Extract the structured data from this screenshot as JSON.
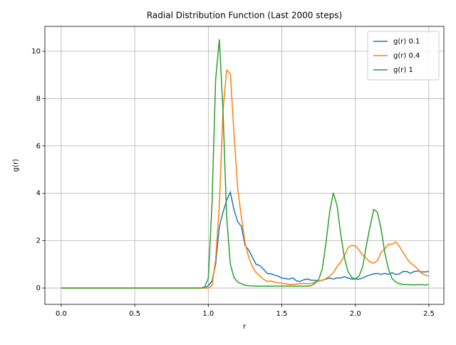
{
  "chart_data": {
    "type": "line",
    "title": "Radial Distribution Function (Last 2000 steps)",
    "x_label": "r",
    "y_label": "g(r)",
    "x": [
      0,
      0.5,
      0.95,
      0.975,
      1.0,
      1.025,
      1.05,
      1.075,
      1.1,
      1.125,
      1.15,
      1.175,
      1.2,
      1.225,
      1.25,
      1.275,
      1.3,
      1.325,
      1.35,
      1.375,
      1.4,
      1.425,
      1.45,
      1.475,
      1.5,
      1.525,
      1.55,
      1.575,
      1.6,
      1.625,
      1.65,
      1.675,
      1.7,
      1.725,
      1.75,
      1.775,
      1.8,
      1.825,
      1.85,
      1.875,
      1.9,
      1.925,
      1.95,
      1.975,
      2.0,
      2.025,
      2.05,
      2.075,
      2.1,
      2.125,
      2.15,
      2.175,
      2.2,
      2.225,
      2.25,
      2.275,
      2.3,
      2.325,
      2.35,
      2.375,
      2.4,
      2.425,
      2.45,
      2.475,
      2.5
    ],
    "series": [
      {
        "name": "g(r) 0.1",
        "color": "#1f77b4",
        "values": [
          0,
          0,
          0,
          0,
          0.1,
          0.3,
          1.0,
          2.6,
          3.2,
          3.7,
          4.05,
          3.3,
          2.8,
          2.6,
          1.8,
          1.6,
          1.3,
          1.0,
          0.95,
          0.8,
          0.62,
          0.6,
          0.55,
          0.5,
          0.42,
          0.4,
          0.38,
          0.43,
          0.3,
          0.28,
          0.35,
          0.38,
          0.33,
          0.33,
          0.3,
          0.33,
          0.38,
          0.42,
          0.38,
          0.43,
          0.42,
          0.48,
          0.42,
          0.38,
          0.38,
          0.38,
          0.42,
          0.5,
          0.55,
          0.6,
          0.62,
          0.58,
          0.62,
          0.58,
          0.65,
          0.57,
          0.6,
          0.7,
          0.7,
          0.62,
          0.7,
          0.72,
          0.68,
          0.68,
          0.7
        ]
      },
      {
        "name": "g(r) 0.4",
        "color": "#ff7f0e",
        "values": [
          0,
          0,
          0,
          0,
          0,
          0.1,
          1.2,
          3.5,
          7.5,
          9.2,
          9.05,
          6.5,
          4.2,
          3.0,
          1.9,
          1.3,
          0.9,
          0.65,
          0.5,
          0.38,
          0.28,
          0.3,
          0.25,
          0.22,
          0.2,
          0.18,
          0.15,
          0.15,
          0.17,
          0.18,
          0.2,
          0.18,
          0.2,
          0.25,
          0.3,
          0.32,
          0.4,
          0.5,
          0.65,
          0.9,
          1.1,
          1.35,
          1.7,
          1.8,
          1.78,
          1.6,
          1.4,
          1.25,
          1.1,
          1.05,
          1.15,
          1.5,
          1.65,
          1.85,
          1.85,
          1.95,
          1.75,
          1.5,
          1.25,
          1.05,
          0.95,
          0.8,
          0.62,
          0.55,
          0.5
        ]
      },
      {
        "name": "g(r) 1",
        "color": "#2ca02c",
        "values": [
          0,
          0,
          0,
          0.05,
          0.4,
          3.5,
          8.8,
          10.5,
          7.5,
          3.0,
          1.0,
          0.45,
          0.25,
          0.18,
          0.12,
          0.1,
          0.09,
          0.08,
          0.08,
          0.08,
          0.08,
          0.08,
          0.08,
          0.08,
          0.08,
          0.08,
          0.08,
          0.08,
          0.08,
          0.08,
          0.08,
          0.08,
          0.1,
          0.2,
          0.35,
          0.8,
          1.9,
          3.2,
          4.02,
          3.5,
          2.3,
          1.3,
          0.7,
          0.45,
          0.38,
          0.5,
          0.9,
          1.8,
          2.6,
          3.32,
          3.2,
          2.5,
          1.5,
          0.8,
          0.4,
          0.25,
          0.18,
          0.15,
          0.14,
          0.14,
          0.13,
          0.14,
          0.14,
          0.13,
          0.14
        ]
      }
    ],
    "xlim": [
      -0.111,
      2.602
    ],
    "ylim": [
      -0.69,
      11.05
    ],
    "xticks": [
      {
        "value": 0,
        "label": "0.0"
      },
      {
        "value": 0.5,
        "label": "0.5"
      },
      {
        "value": 1,
        "label": "1.0"
      },
      {
        "value": 1.5,
        "label": "1.5"
      },
      {
        "value": 2,
        "label": "2.0"
      },
      {
        "value": 2.5,
        "label": "2.5"
      }
    ],
    "yticks": [
      0,
      2,
      4,
      6,
      8,
      10
    ],
    "grid": true,
    "legend": "upper-right"
  }
}
